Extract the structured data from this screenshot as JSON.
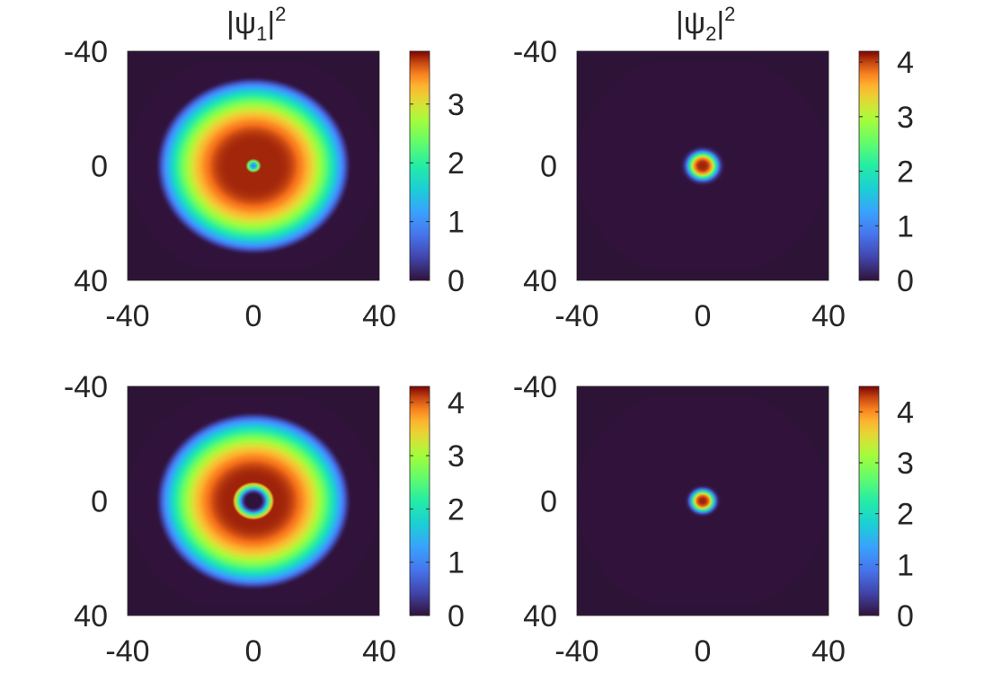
{
  "figure": {
    "background": "#ffffff",
    "field_color": "#2d1336"
  },
  "chart_data": [
    {
      "type": "heatmap",
      "title": {
        "base": "|ψ",
        "sub": "1",
        "close": "|",
        "sup": "2"
      },
      "xticks": [
        "-40",
        "0",
        "40"
      ],
      "yticks": [
        "-40",
        "0",
        "40"
      ],
      "xlim": [
        -40,
        40
      ],
      "ylim": [
        -40,
        40
      ],
      "colorbar": {
        "min": 0,
        "max": 3.9,
        "ticks": [
          "0",
          "1",
          "2",
          "3"
        ],
        "tick_values": [
          0,
          1,
          2,
          3
        ]
      },
      "distribution": {
        "shape": "ring-with-core",
        "outer_radius": 31,
        "peak_radius": 8,
        "peak_value": 3.8,
        "center_hole_radius": 2.5,
        "center_value": 0.8
      }
    },
    {
      "type": "heatmap",
      "title": {
        "base": "|ψ",
        "sub": "2",
        "close": "|",
        "sup": "2"
      },
      "xticks": [
        "-40",
        "0",
        "40"
      ],
      "yticks": [
        "-40",
        "0",
        "40"
      ],
      "xlim": [
        -40,
        40
      ],
      "ylim": [
        -40,
        40
      ],
      "colorbar": {
        "min": 0,
        "max": 4.2,
        "ticks": [
          "0",
          "1",
          "2",
          "3",
          "4"
        ],
        "tick_values": [
          0,
          1,
          2,
          3,
          4
        ]
      },
      "distribution": {
        "shape": "spot",
        "radius": 5,
        "peak_value": 4.1
      }
    },
    {
      "type": "heatmap",
      "title": null,
      "xticks": [
        "-40",
        "0",
        "40"
      ],
      "yticks": [
        "-40",
        "0",
        "40"
      ],
      "xlim": [
        -40,
        40
      ],
      "ylim": [
        -40,
        40
      ],
      "colorbar": {
        "min": 0,
        "max": 4.3,
        "ticks": [
          "0",
          "1",
          "2",
          "3",
          "4"
        ],
        "tick_values": [
          0,
          1,
          2,
          3,
          4
        ]
      },
      "distribution": {
        "shape": "ring-with-hole",
        "outer_radius": 31,
        "peak_radius": 8,
        "peak_value": 4.2,
        "hole_radius": 4,
        "center_value": 0
      }
    },
    {
      "type": "heatmap",
      "title": null,
      "xticks": [
        "-40",
        "0",
        "40"
      ],
      "yticks": [
        "-40",
        "0",
        "40"
      ],
      "xlim": [
        -40,
        40
      ],
      "ylim": [
        -40,
        40
      ],
      "colorbar": {
        "min": 0,
        "max": 4.5,
        "ticks": [
          "0",
          "1",
          "2",
          "3",
          "4"
        ],
        "tick_values": [
          0,
          1,
          2,
          3,
          4
        ]
      },
      "distribution": {
        "shape": "spot",
        "radius": 4,
        "peak_value": 4.4
      }
    }
  ]
}
